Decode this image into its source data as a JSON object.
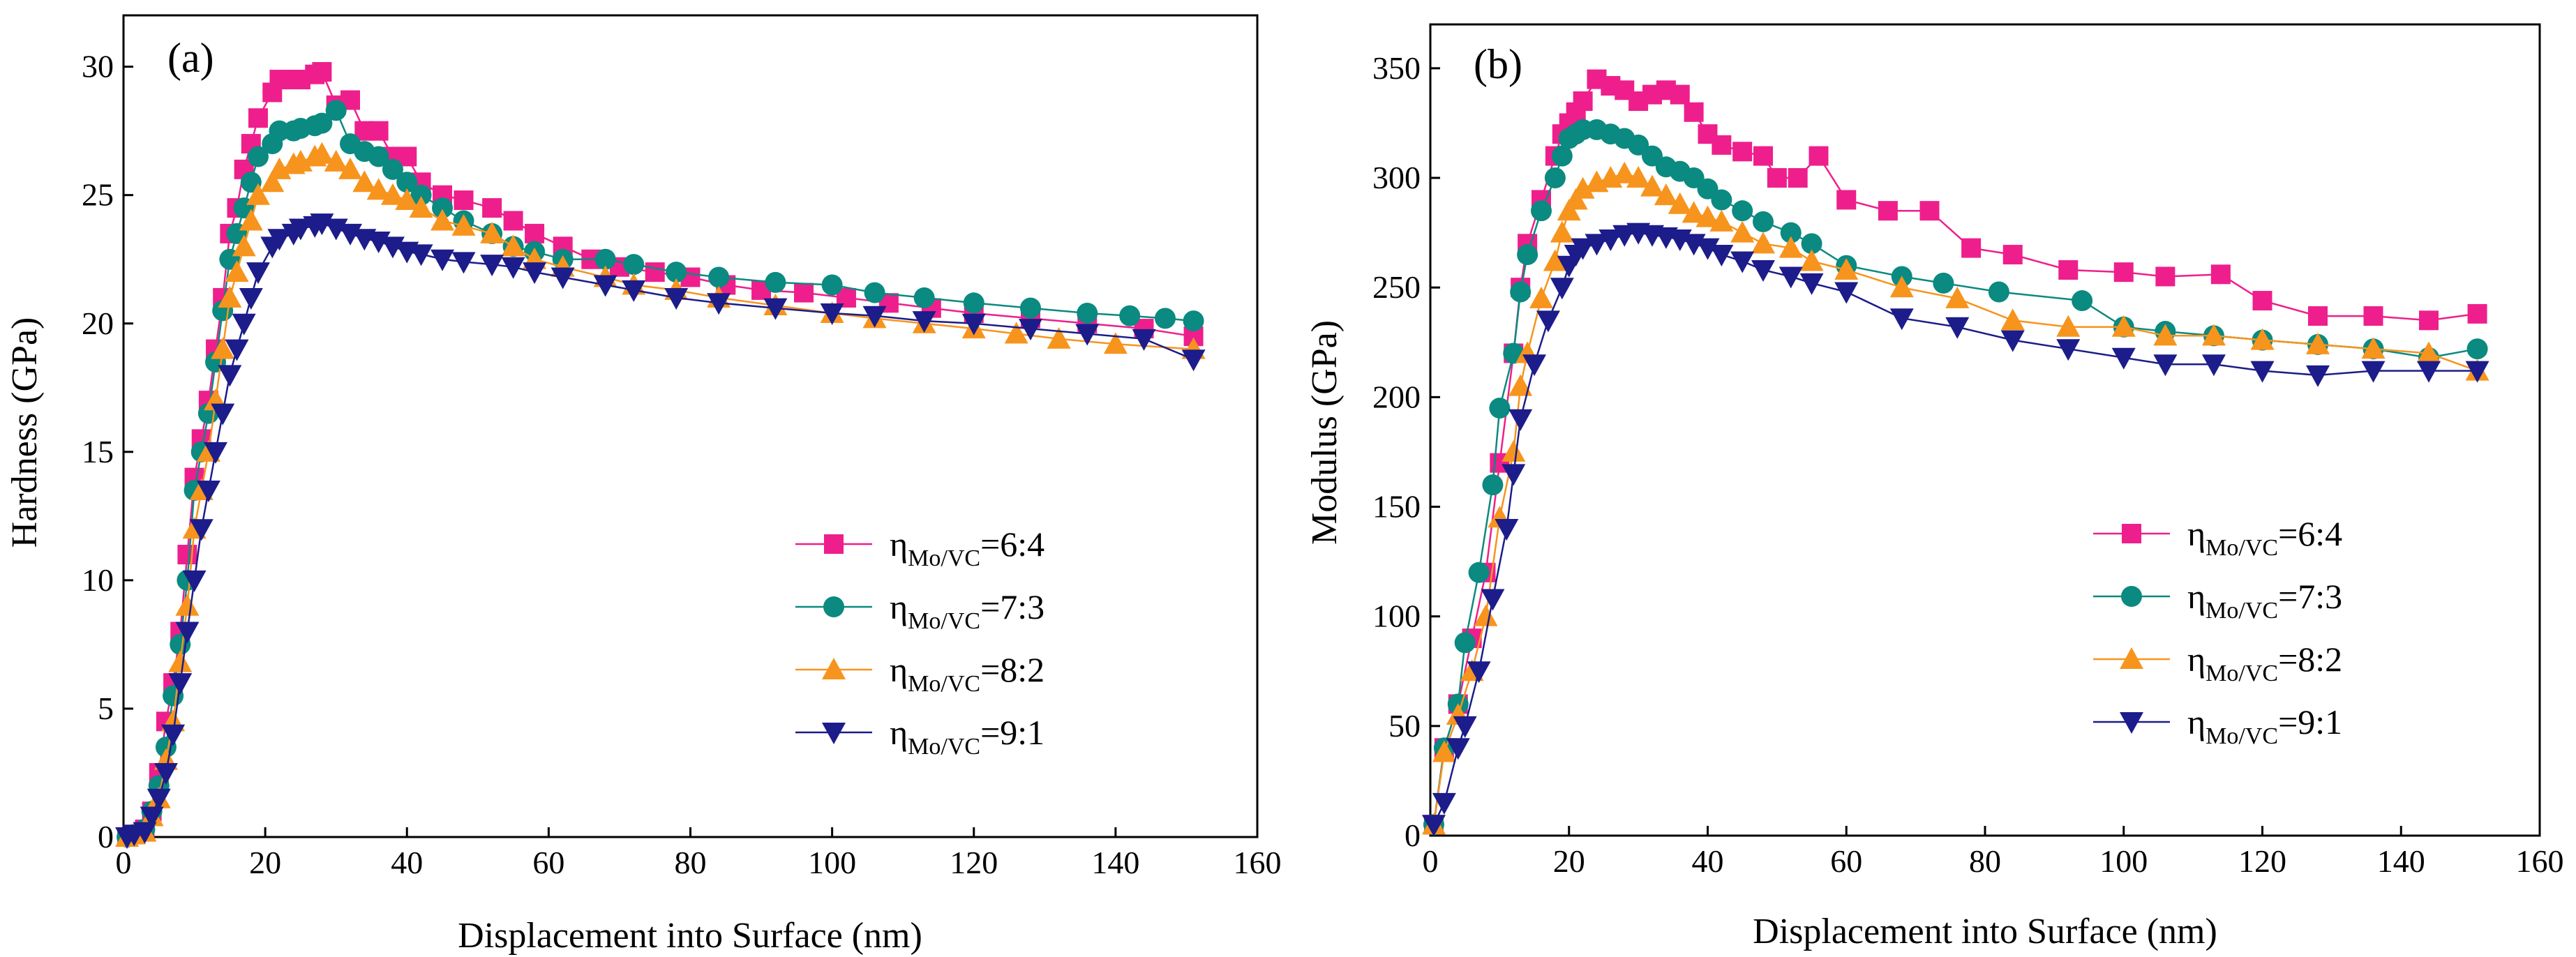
{
  "colors": {
    "series_6_4": "#ee1f8c",
    "series_7_3": "#0a8a80",
    "series_8_2": "#f7941d",
    "series_9_1": "#1c1c8a",
    "axis": "#000000",
    "background": "#ffffff"
  },
  "chart_data": [
    {
      "panel_label": "(a)",
      "type": "line",
      "xlabel": "Displacement into Surface (nm)",
      "ylabel": "Hardness (GPa)",
      "xlim": [
        0,
        160
      ],
      "ylim": [
        0,
        32
      ],
      "xticks": [
        0,
        20,
        40,
        60,
        80,
        100,
        120,
        140,
        160
      ],
      "yticks": [
        0,
        5,
        10,
        15,
        20,
        25,
        30
      ],
      "legend_position": "center-right",
      "series": [
        {
          "name_main": "η",
          "name_sub": "Mo/VC",
          "name_ratio": "=6:4",
          "marker": "square",
          "color_key": "series_6_4",
          "x": [
            0.5,
            1.5,
            3,
            4,
            5,
            6,
            7,
            8,
            9,
            10,
            11,
            12,
            13,
            14,
            15,
            16,
            17,
            18,
            19,
            21,
            22,
            24,
            25,
            27,
            28,
            30,
            32,
            34,
            36,
            38,
            40,
            42,
            45,
            48,
            52,
            55,
            58,
            62,
            66,
            70,
            75,
            80,
            85,
            90,
            96,
            102,
            108,
            114,
            120,
            128,
            136,
            144,
            151
          ],
          "y": [
            0,
            0.1,
            0.3,
            1,
            2.5,
            4.5,
            6,
            8,
            11,
            14,
            15.5,
            17,
            19,
            21,
            23.5,
            24.5,
            26,
            27,
            28,
            29,
            29.5,
            29.5,
            29.5,
            29.7,
            29.8,
            28.5,
            28.7,
            27.5,
            27.5,
            26.5,
            26.5,
            25.5,
            25,
            24.8,
            24.5,
            24,
            23.5,
            23,
            22.5,
            22.2,
            22,
            21.8,
            21.5,
            21.3,
            21.2,
            21,
            20.8,
            20.6,
            20.4,
            20.2,
            20,
            19.8,
            19.5
          ]
        },
        {
          "name_main": "η",
          "name_sub": "Mo/VC",
          "name_ratio": "=7:3",
          "marker": "circle",
          "color_key": "series_7_3",
          "x": [
            0.5,
            1.5,
            3,
            4,
            5,
            6,
            7,
            8,
            9,
            10,
            11,
            12,
            13,
            14,
            15,
            16,
            17,
            18,
            19,
            21,
            22,
            24,
            25,
            27,
            28,
            30,
            32,
            34,
            36,
            38,
            40,
            42,
            45,
            48,
            52,
            55,
            58,
            62,
            68,
            72,
            78,
            84,
            92,
            100,
            106,
            113,
            120,
            128,
            136,
            142,
            147,
            151
          ],
          "y": [
            0,
            0.1,
            0.3,
            1,
            2,
            3.5,
            5.5,
            7.5,
            10,
            13.5,
            15,
            16.5,
            18.5,
            20.5,
            22.5,
            23.5,
            24.5,
            25.5,
            26.5,
            27,
            27.5,
            27.5,
            27.6,
            27.7,
            27.8,
            28.3,
            27,
            26.7,
            26.5,
            26,
            25.5,
            25,
            24.5,
            24,
            23.5,
            23,
            22.8,
            22.5,
            22.5,
            22.3,
            22,
            21.8,
            21.6,
            21.5,
            21.2,
            21,
            20.8,
            20.6,
            20.4,
            20.3,
            20.2,
            20.1
          ]
        },
        {
          "name_main": "η",
          "name_sub": "Mo/VC",
          "name_ratio": "=8:2",
          "marker": "triangle-up",
          "color_key": "series_8_2",
          "x": [
            0.5,
            1.5,
            3,
            4,
            5,
            6,
            7,
            8,
            9,
            10,
            11,
            12,
            13,
            14,
            15,
            16,
            17,
            18,
            19,
            21,
            22,
            24,
            25,
            27,
            28,
            30,
            32,
            34,
            36,
            38,
            40,
            42,
            45,
            48,
            52,
            55,
            58,
            62,
            68,
            72,
            78,
            84,
            92,
            100,
            106,
            113,
            120,
            126,
            132,
            140,
            151
          ],
          "y": [
            0,
            0.1,
            0.2,
            0.8,
            1.5,
            3,
            4.5,
            6.8,
            9,
            12,
            13.5,
            15,
            17,
            19,
            21,
            22,
            23,
            24,
            25,
            25.5,
            26,
            26.2,
            26.3,
            26.5,
            26.6,
            26.3,
            26,
            25.5,
            25.2,
            25,
            24.8,
            24.5,
            24,
            23.8,
            23.5,
            23,
            22.5,
            22.2,
            21.8,
            21.5,
            21.3,
            21,
            20.7,
            20.4,
            20.2,
            20,
            19.8,
            19.6,
            19.4,
            19.2,
            19
          ]
        },
        {
          "name_main": "η",
          "name_sub": "Mo/VC",
          "name_ratio": "=9:1",
          "marker": "triangle-down",
          "color_key": "series_9_1",
          "x": [
            0.5,
            1.5,
            3,
            4,
            5,
            6,
            7,
            8,
            9,
            10,
            11,
            12,
            13,
            14,
            15,
            16,
            17,
            18,
            19,
            21,
            22,
            24,
            25,
            27,
            28,
            30,
            32,
            34,
            36,
            38,
            40,
            42,
            45,
            48,
            52,
            55,
            58,
            62,
            68,
            72,
            78,
            84,
            92,
            100,
            106,
            113,
            120,
            128,
            136,
            144,
            151
          ],
          "y": [
            0,
            0.1,
            0.2,
            0.8,
            1.5,
            2.5,
            4,
            6,
            8,
            10,
            12,
            13.5,
            15,
            16.5,
            18,
            19,
            20,
            21,
            22,
            23,
            23.3,
            23.5,
            23.7,
            23.8,
            23.9,
            23.7,
            23.5,
            23.3,
            23.2,
            23,
            22.8,
            22.7,
            22.5,
            22.4,
            22.3,
            22.2,
            22,
            21.8,
            21.5,
            21.3,
            21,
            20.8,
            20.6,
            20.4,
            20.3,
            20.1,
            20,
            19.8,
            19.6,
            19.4,
            18.6
          ]
        }
      ]
    },
    {
      "panel_label": "(b)",
      "type": "line",
      "xlabel": "Displacement into Surface (nm)",
      "ylabel": "Modulus (GPa)",
      "xlim": [
        0,
        160
      ],
      "ylim": [
        0,
        370
      ],
      "xticks": [
        0,
        20,
        40,
        60,
        80,
        100,
        120,
        140,
        160
      ],
      "yticks": [
        0,
        50,
        100,
        150,
        200,
        250,
        300,
        350
      ],
      "legend_position": "center-right",
      "series": [
        {
          "name_main": "η",
          "name_sub": "Mo/VC",
          "name_ratio": "=6:4",
          "marker": "square",
          "color_key": "series_6_4",
          "x": [
            0.5,
            2,
            4,
            6,
            8,
            10,
            12,
            13,
            14,
            16,
            18,
            19,
            20,
            21,
            22,
            24,
            26,
            28,
            30,
            32,
            34,
            36,
            38,
            40,
            42,
            45,
            48,
            50,
            53,
            56,
            60,
            66,
            72,
            78,
            84,
            92,
            100,
            106,
            114,
            120,
            128,
            136,
            144,
            151
          ],
          "y": [
            5,
            40,
            60,
            90,
            120,
            170,
            220,
            250,
            270,
            290,
            310,
            320,
            325,
            330,
            335,
            345,
            342,
            340,
            335,
            338,
            340,
            338,
            330,
            320,
            315,
            312,
            310,
            300,
            300,
            310,
            290,
            285,
            285,
            268,
            265,
            258,
            257,
            255,
            256,
            244,
            237,
            237,
            235,
            238
          ]
        },
        {
          "name_main": "η",
          "name_sub": "Mo/VC",
          "name_ratio": "=7:3",
          "marker": "circle",
          "color_key": "series_7_3",
          "x": [
            0.5,
            2,
            4,
            5,
            7,
            9,
            10,
            12,
            13,
            14,
            16,
            18,
            19,
            20,
            21,
            22,
            24,
            26,
            28,
            30,
            32,
            34,
            36,
            38,
            40,
            42,
            45,
            48,
            52,
            55,
            60,
            68,
            74,
            82,
            94,
            100,
            106,
            113,
            120,
            128,
            136,
            144,
            151
          ],
          "y": [
            5,
            40,
            60,
            88,
            120,
            160,
            195,
            220,
            248,
            265,
            285,
            300,
            310,
            318,
            320,
            322,
            322,
            320,
            318,
            315,
            310,
            305,
            303,
            300,
            295,
            290,
            285,
            280,
            275,
            270,
            260,
            255,
            252,
            248,
            244,
            232,
            230,
            228,
            226,
            224,
            222,
            218,
            222
          ]
        },
        {
          "name_main": "η",
          "name_sub": "Mo/VC",
          "name_ratio": "=8:2",
          "marker": "triangle-up",
          "color_key": "series_8_2",
          "x": [
            0.5,
            2,
            4,
            6,
            8,
            10,
            12,
            13,
            14,
            16,
            18,
            19,
            20,
            21,
            22,
            24,
            26,
            28,
            30,
            32,
            34,
            36,
            38,
            40,
            42,
            45,
            48,
            52,
            55,
            60,
            68,
            76,
            84,
            92,
            100,
            106,
            113,
            120,
            128,
            136,
            144,
            151
          ],
          "y": [
            5,
            38,
            55,
            75,
            100,
            145,
            175,
            205,
            220,
            245,
            262,
            275,
            285,
            290,
            295,
            298,
            300,
            302,
            300,
            296,
            292,
            288,
            284,
            282,
            280,
            275,
            270,
            268,
            262,
            258,
            250,
            245,
            235,
            232,
            232,
            228,
            228,
            226,
            224,
            222,
            220,
            212
          ]
        },
        {
          "name_main": "η",
          "name_sub": "Mo/VC",
          "name_ratio": "=9:1",
          "marker": "triangle-down",
          "color_key": "series_9_1",
          "x": [
            0.5,
            2,
            4,
            5,
            7,
            9,
            11,
            12,
            13,
            15,
            17,
            19,
            20,
            21,
            22,
            24,
            26,
            28,
            30,
            32,
            34,
            36,
            38,
            40,
            42,
            45,
            48,
            52,
            55,
            60,
            68,
            76,
            84,
            92,
            100,
            106,
            113,
            120,
            128,
            136,
            144,
            151
          ],
          "y": [
            5,
            15,
            40,
            50,
            75,
            108,
            140,
            165,
            190,
            215,
            235,
            250,
            260,
            265,
            268,
            270,
            272,
            274,
            275,
            274,
            273,
            272,
            270,
            268,
            265,
            262,
            258,
            255,
            252,
            248,
            236,
            232,
            226,
            222,
            218,
            215,
            215,
            212,
            210,
            212,
            212,
            212
          ]
        }
      ]
    }
  ]
}
